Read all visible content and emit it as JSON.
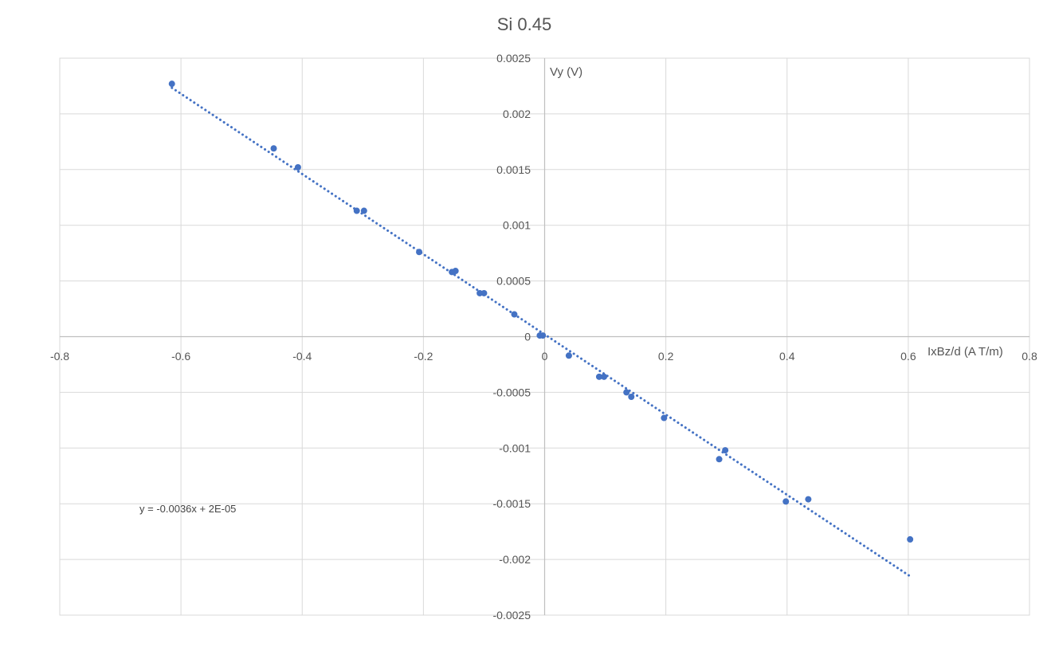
{
  "chart_data": {
    "type": "scatter",
    "title": "Si 0.45",
    "xlabel": "IxBz/d (A T/m)",
    "ylabel": "Vy (V)",
    "xlim": [
      -0.8,
      0.8
    ],
    "ylim": [
      -0.0025,
      0.0025
    ],
    "x_ticks": [
      "-0.8",
      "-0.6",
      "-0.4",
      "-0.2",
      "0",
      "0.2",
      "0.4",
      "0.6",
      "0.8"
    ],
    "y_ticks": [
      "0.0025",
      "0.002",
      "0.0015",
      "0.001",
      "0.0005",
      "0",
      "-0.0005",
      "-0.001",
      "-0.0015",
      "-0.002",
      "-0.0025"
    ],
    "grid": true,
    "legend": "none",
    "series": [
      {
        "color": "#4472C4",
        "points": [
          [
            -0.615,
            0.00227
          ],
          [
            -0.447,
            0.00169
          ],
          [
            -0.407,
            0.00152
          ],
          [
            -0.31,
            0.00113
          ],
          [
            -0.298,
            0.00113
          ],
          [
            -0.207,
            0.00076
          ],
          [
            -0.153,
            0.00058
          ],
          [
            -0.147,
            0.00059
          ],
          [
            -0.107,
            0.00039
          ],
          [
            -0.1,
            0.00039
          ],
          [
            -0.05,
            0.0002
          ],
          [
            -0.008,
            1e-05
          ],
          [
            -0.003,
            1e-05
          ],
          [
            0.04,
            -0.00017
          ],
          [
            0.09,
            -0.00036
          ],
          [
            0.098,
            -0.00036
          ],
          [
            0.135,
            -0.0005
          ],
          [
            0.143,
            -0.00054
          ],
          [
            0.197,
            -0.00073
          ],
          [
            0.288,
            -0.0011
          ],
          [
            0.298,
            -0.00102
          ],
          [
            0.398,
            -0.00148
          ],
          [
            0.435,
            -0.00146
          ],
          [
            0.603,
            -0.00182
          ]
        ]
      }
    ],
    "trendline": {
      "type": "linear",
      "style": "dotted",
      "color": "#4472C4",
      "slope": -0.0036,
      "intercept": 2e-05,
      "x_range": [
        -0.615,
        0.603
      ],
      "equation_label": "y = -0.0036x + 2E-05"
    }
  }
}
